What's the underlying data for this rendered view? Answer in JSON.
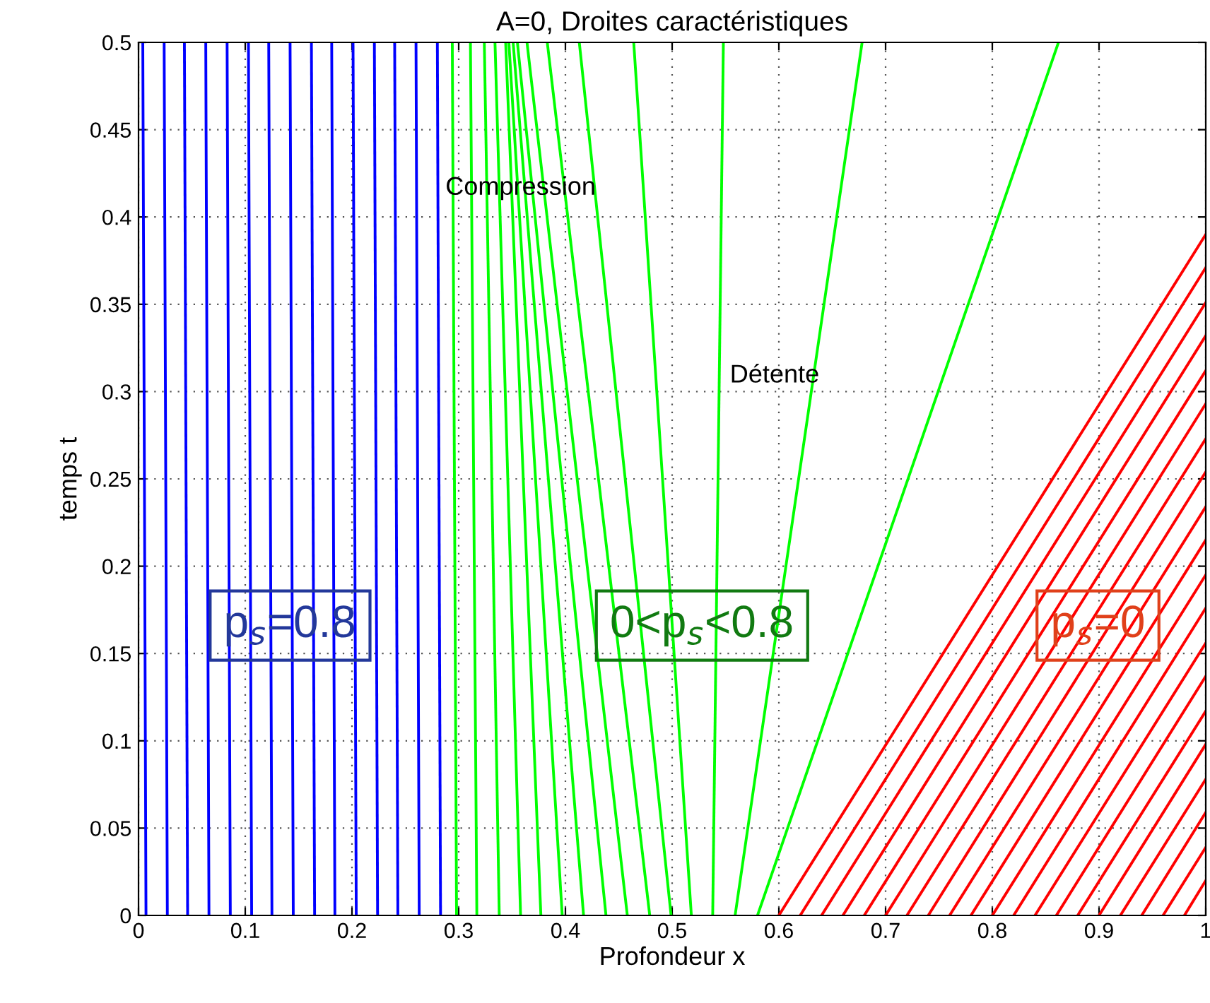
{
  "chart_data": {
    "type": "line",
    "title": "A=0, Droites caractéristiques",
    "xlabel": "Profondeur x",
    "ylabel": "temps t",
    "xlim": [
      0,
      1
    ],
    "ylim": [
      0,
      0.5
    ],
    "xticks": [
      0,
      0.1,
      0.2,
      0.3,
      0.4,
      0.5,
      0.6,
      0.7,
      0.8,
      0.9,
      1
    ],
    "yticks": [
      0,
      0.05,
      0.1,
      0.15,
      0.2,
      0.25,
      0.3,
      0.35,
      0.4,
      0.45,
      0.5
    ],
    "grid": true,
    "legend": false,
    "marker": "none",
    "line_style": "solid",
    "annotations": [
      "Compression",
      "Détente",
      "p$_{s}$=0.8",
      "0<p$_{s}$<0.8",
      "p$_{s}$=0"
    ],
    "series": [
      {
        "color": "#0000ff",
        "x": [
          0.007,
          0.004
        ],
        "values": [
          0,
          0.5
        ]
      },
      {
        "color": "#0000ff",
        "x": [
          0.027,
          0.024
        ],
        "values": [
          0,
          0.5
        ]
      },
      {
        "color": "#0000ff",
        "x": [
          0.046,
          0.043
        ],
        "values": [
          0,
          0.5
        ]
      },
      {
        "color": "#0000ff",
        "x": [
          0.066,
          0.063
        ],
        "values": [
          0,
          0.5
        ]
      },
      {
        "color": "#0000ff",
        "x": [
          0.086,
          0.083
        ],
        "values": [
          0,
          0.5
        ]
      },
      {
        "color": "#0000ff",
        "x": [
          0.106,
          0.103
        ],
        "values": [
          0,
          0.5
        ]
      },
      {
        "color": "#0000ff",
        "x": [
          0.125,
          0.122
        ],
        "values": [
          0,
          0.5
        ]
      },
      {
        "color": "#0000ff",
        "x": [
          0.145,
          0.142
        ],
        "values": [
          0,
          0.5
        ]
      },
      {
        "color": "#0000ff",
        "x": [
          0.165,
          0.162
        ],
        "values": [
          0,
          0.5
        ]
      },
      {
        "color": "#0000ff",
        "x": [
          0.184,
          0.181
        ],
        "values": [
          0,
          0.5
        ]
      },
      {
        "color": "#0000ff",
        "x": [
          0.204,
          0.201
        ],
        "values": [
          0,
          0.5
        ]
      },
      {
        "color": "#0000ff",
        "x": [
          0.224,
          0.221
        ],
        "values": [
          0,
          0.5
        ]
      },
      {
        "color": "#0000ff",
        "x": [
          0.243,
          0.24
        ],
        "values": [
          0,
          0.5
        ]
      },
      {
        "color": "#0000ff",
        "x": [
          0.263,
          0.26
        ],
        "values": [
          0,
          0.5
        ]
      },
      {
        "color": "#0000ff",
        "x": [
          0.283,
          0.28
        ],
        "values": [
          0,
          0.5
        ]
      },
      {
        "color": "#00ff00",
        "x": [
          0.298,
          0.294
        ],
        "values": [
          0,
          0.5
        ]
      },
      {
        "color": "#00ff00",
        "x": [
          0.317,
          0.311
        ],
        "values": [
          0,
          0.5
        ]
      },
      {
        "color": "#00ff00",
        "x": [
          0.338,
          0.324
        ],
        "values": [
          0,
          0.5
        ]
      },
      {
        "color": "#00ff00",
        "x": [
          0.358,
          0.334
        ],
        "values": [
          0,
          0.5
        ]
      },
      {
        "color": "#00ff00",
        "x": [
          0.377,
          0.344
        ],
        "values": [
          0,
          0.5
        ]
      },
      {
        "color": "#00ff00",
        "x": [
          0.397,
          0.347
        ],
        "values": [
          0,
          0.5
        ]
      },
      {
        "color": "#00ff00",
        "x": [
          0.417,
          0.351
        ],
        "values": [
          0,
          0.5
        ]
      },
      {
        "color": "#00ff00",
        "x": [
          0.438,
          0.355
        ],
        "values": [
          0,
          0.5
        ]
      },
      {
        "color": "#00ff00",
        "x": [
          0.458,
          0.364
        ],
        "values": [
          0,
          0.5
        ]
      },
      {
        "color": "#00ff00",
        "x": [
          0.479,
          0.383
        ],
        "values": [
          0,
          0.5
        ]
      },
      {
        "color": "#00ff00",
        "x": [
          0.499,
          0.413
        ],
        "values": [
          0,
          0.5
        ]
      },
      {
        "color": "#00ff00",
        "x": [
          0.518,
          0.464
        ],
        "values": [
          0,
          0.5
        ]
      },
      {
        "color": "#00ff00",
        "x": [
          0.538,
          0.548
        ],
        "values": [
          0,
          0.5
        ]
      },
      {
        "color": "#00ff00",
        "x": [
          0.559,
          0.678
        ],
        "values": [
          0,
          0.5
        ]
      },
      {
        "color": "#00ff00",
        "x": [
          0.58,
          0.862
        ],
        "values": [
          0,
          0.5
        ]
      },
      {
        "color": "#ff0000",
        "x": [
          0.6,
          1
        ],
        "values": [
          0,
          0.39
        ]
      },
      {
        "color": "#ff0000",
        "x": [
          0.62,
          1
        ],
        "values": [
          0,
          0.371
        ]
      },
      {
        "color": "#ff0000",
        "x": [
          0.64,
          1
        ],
        "values": [
          0,
          0.351
        ]
      },
      {
        "color": "#ff0000",
        "x": [
          0.66,
          1
        ],
        "values": [
          0,
          0.332
        ]
      },
      {
        "color": "#ff0000",
        "x": [
          0.68,
          1
        ],
        "values": [
          0,
          0.312
        ]
      },
      {
        "color": "#ff0000",
        "x": [
          0.7,
          1
        ],
        "values": [
          0,
          0.293
        ]
      },
      {
        "color": "#ff0000",
        "x": [
          0.72,
          1
        ],
        "values": [
          0,
          0.273
        ]
      },
      {
        "color": "#ff0000",
        "x": [
          0.74,
          1
        ],
        "values": [
          0,
          0.254
        ]
      },
      {
        "color": "#ff0000",
        "x": [
          0.76,
          1
        ],
        "values": [
          0,
          0.234
        ]
      },
      {
        "color": "#ff0000",
        "x": [
          0.78,
          1
        ],
        "values": [
          0,
          0.215
        ]
      },
      {
        "color": "#ff0000",
        "x": [
          0.8,
          1
        ],
        "values": [
          0,
          0.195
        ]
      },
      {
        "color": "#ff0000",
        "x": [
          0.82,
          1
        ],
        "values": [
          0,
          0.176
        ]
      },
      {
        "color": "#ff0000",
        "x": [
          0.84,
          1
        ],
        "values": [
          0,
          0.156
        ]
      },
      {
        "color": "#ff0000",
        "x": [
          0.86,
          1
        ],
        "values": [
          0,
          0.137
        ]
      },
      {
        "color": "#ff0000",
        "x": [
          0.88,
          1
        ],
        "values": [
          0,
          0.117
        ]
      },
      {
        "color": "#ff0000",
        "x": [
          0.9,
          1
        ],
        "values": [
          0,
          0.098
        ]
      },
      {
        "color": "#ff0000",
        "x": [
          0.92,
          1
        ],
        "values": [
          0,
          0.078
        ]
      },
      {
        "color": "#ff0000",
        "x": [
          0.94,
          1
        ],
        "values": [
          0,
          0.059
        ]
      },
      {
        "color": "#ff0000",
        "x": [
          0.96,
          1
        ],
        "values": [
          0,
          0.039
        ]
      },
      {
        "color": "#ff0000",
        "x": [
          0.98,
          1
        ],
        "values": [
          0,
          0.02
        ]
      }
    ]
  }
}
